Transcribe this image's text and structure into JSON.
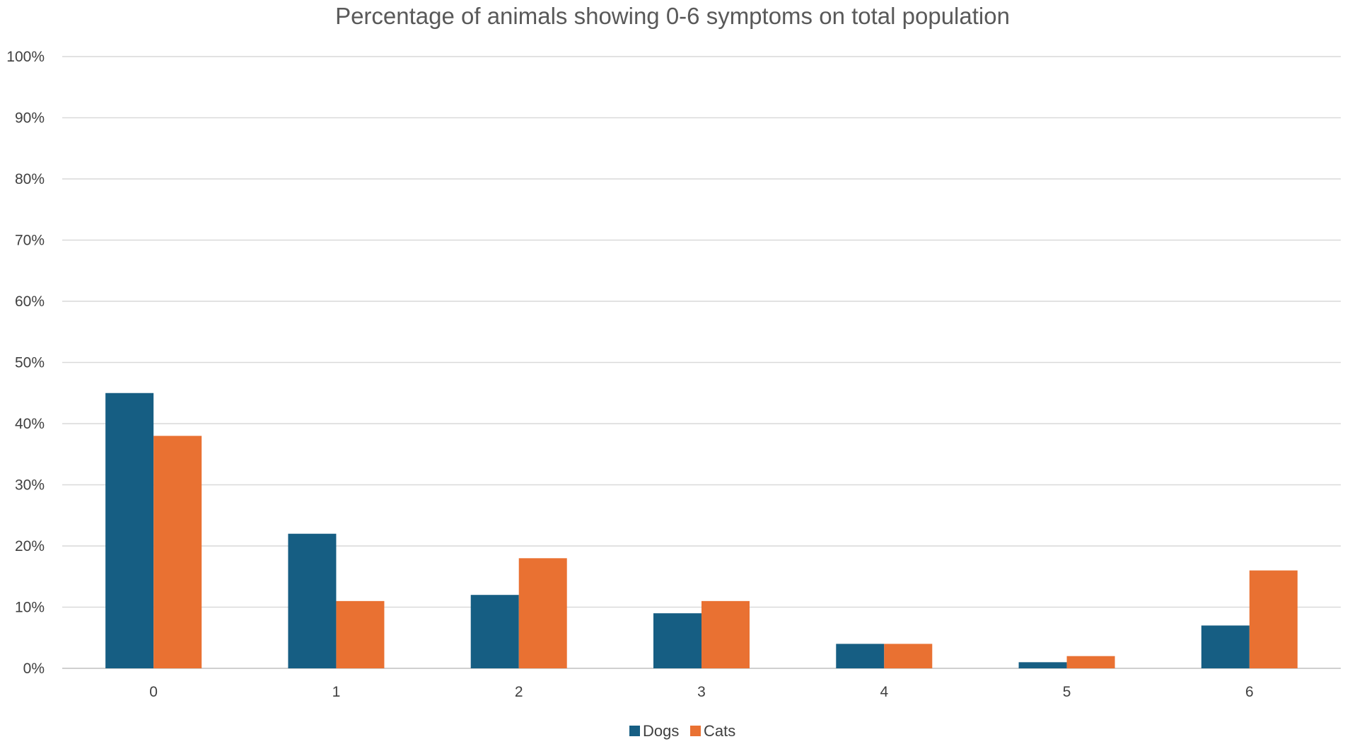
{
  "chart_data": {
    "type": "bar",
    "title": "Percentage of animals showing 0-6 symptoms on total population",
    "xlabel": "",
    "ylabel": "",
    "categories": [
      "0",
      "1",
      "2",
      "3",
      "4",
      "5",
      "6"
    ],
    "series": [
      {
        "name": "Dogs",
        "color": "#165E83",
        "values": [
          45,
          22,
          12,
          9,
          4,
          1,
          7
        ]
      },
      {
        "name": "Cats",
        "color": "#E97132",
        "values": [
          38,
          11,
          18,
          11,
          4,
          2,
          16
        ]
      }
    ],
    "ylim": [
      0,
      100
    ],
    "yticks": [
      0,
      10,
      20,
      30,
      40,
      50,
      60,
      70,
      80,
      90,
      100
    ],
    "ytick_labels": [
      "0%",
      "10%",
      "20%",
      "30%",
      "40%",
      "50%",
      "60%",
      "70%",
      "80%",
      "90%",
      "100%"
    ],
    "grid": true,
    "legend": "bottom"
  }
}
